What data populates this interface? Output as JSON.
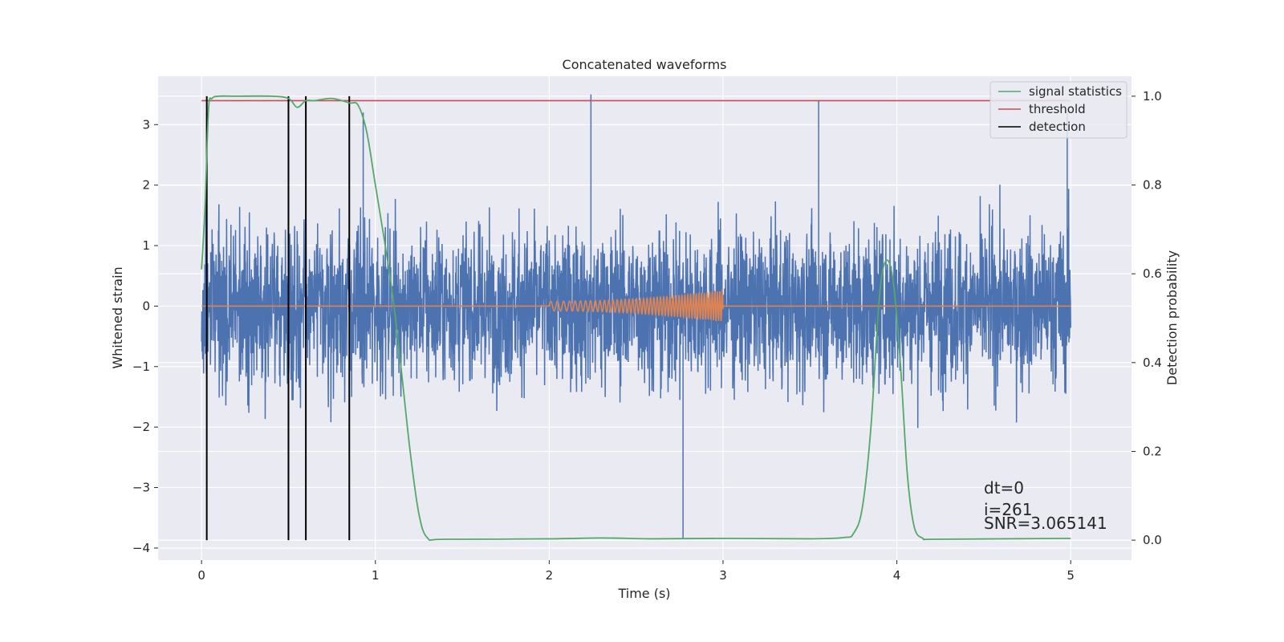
{
  "chart_data": {
    "type": "line",
    "title": "Concatenated waveforms",
    "xlabel": "Time (s)",
    "ylabel": "Whitened strain",
    "ylabel_right": "Detection probability",
    "xlim": [
      -0.25,
      5.35
    ],
    "ylim": [
      -4.2,
      3.8
    ],
    "ylim_right": [
      -0.045,
      1.045
    ],
    "xticks": [
      0,
      1,
      2,
      3,
      4,
      5
    ],
    "yticks": [
      -4,
      -3,
      -2,
      -1,
      0,
      1,
      2,
      3
    ],
    "yticks_right": [
      0.0,
      0.2,
      0.4,
      0.6,
      0.8,
      1.0
    ],
    "xtick_labels": [
      "0",
      "1",
      "2",
      "3",
      "4",
      "5"
    ],
    "ytick_labels": [
      "−4",
      "−3",
      "−2",
      "−1",
      "0",
      "1",
      "2",
      "3"
    ],
    "ytick_right_labels": [
      "0.0",
      "0.2",
      "0.4",
      "0.6",
      "0.8",
      "1.0"
    ],
    "grid": true,
    "legend_placement": "top-right",
    "colors": {
      "background": "#eaeaf2",
      "strain": "#4c72b0",
      "injection": "#dd8452",
      "statistics": "#55a868",
      "threshold": "#c44e52",
      "detection": "#000000"
    },
    "strain_noise": {
      "x_range": [
        0,
        5
      ],
      "typical_peak": 2.5,
      "max": 3.5,
      "min": -3.85
    },
    "injection": {
      "x_range": [
        2.0,
        3.0
      ],
      "amplitude_start": 0.08,
      "amplitude_end": 0.25,
      "frequency_start_hz": 25,
      "frequency_end_hz": 70
    },
    "series": [
      {
        "name": "signal statistics",
        "x": [
          0.0,
          0.02,
          0.04,
          0.06,
          0.1,
          0.2,
          0.4,
          0.5,
          0.55,
          0.6,
          0.65,
          0.75,
          0.85,
          0.9,
          0.95,
          1.0,
          1.05,
          1.1,
          1.15,
          1.2,
          1.25,
          1.3,
          1.4,
          2.0,
          2.3,
          2.6,
          3.0,
          3.5,
          3.7,
          3.75,
          3.8,
          3.85,
          3.9,
          3.94,
          3.98,
          4.02,
          4.06,
          4.1,
          4.15,
          4.2,
          4.6,
          5.0
        ],
        "y": [
          0.61,
          0.75,
          0.97,
          0.995,
          1.0,
          1.0,
          1.0,
          0.995,
          0.975,
          0.99,
          0.99,
          0.995,
          0.985,
          0.98,
          0.92,
          0.8,
          0.68,
          0.55,
          0.38,
          0.2,
          0.06,
          0.005,
          0.002,
          0.003,
          0.005,
          0.003,
          0.004,
          0.003,
          0.006,
          0.015,
          0.07,
          0.25,
          0.55,
          0.63,
          0.58,
          0.4,
          0.15,
          0.03,
          0.004,
          0.002,
          0.003,
          0.004
        ]
      },
      {
        "name": "threshold",
        "x": [
          0,
          5
        ],
        "y": [
          0.99,
          0.99
        ]
      },
      {
        "name": "detection",
        "x": [
          0.03,
          0.5,
          0.6,
          0.85
        ],
        "y_range": [
          0.0,
          1.0
        ]
      }
    ],
    "annotations": [
      "dt=0",
      "i=261",
      "SNR=3.065141"
    ]
  }
}
